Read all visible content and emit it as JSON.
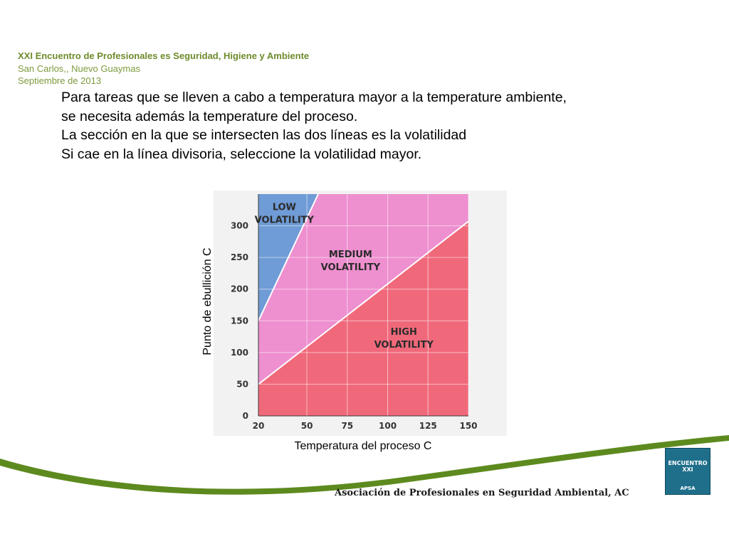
{
  "header": {
    "organization": "XXI Encuentro  de Profesionales es Seguridad, Higiene y Ambiente",
    "location": "San Carlos,, Nuevo Guaymas",
    "date": "Septiembre de 2013"
  },
  "body_lines": [
    "Para tareas que se lleven a cabo a temperatura mayor a la temperature ambiente,",
    "se necesita además la temperature del proceso.",
    "La sección en la que se intersecten las dos líneas es la volatilidad",
    "Si cae en la línea divisoria, seleccione la volatilidad mayor."
  ],
  "chart_data": {
    "type": "area",
    "xlabel": "Temperatura del proceso C",
    "ylabel": "Punto de ebullición C",
    "x_ticks": [
      20,
      50,
      75,
      100,
      125,
      150
    ],
    "y_ticks": [
      0,
      50,
      100,
      150,
      200,
      250,
      300
    ],
    "xlim": [
      20,
      150
    ],
    "ylim": [
      0,
      350
    ],
    "boundaries": [
      {
        "between": [
          "LOW VOLATILITY",
          "MEDIUM VOLATILITY"
        ],
        "points": [
          [
            20,
            150
          ],
          [
            57,
            350
          ]
        ]
      },
      {
        "between": [
          "MEDIUM VOLATILITY",
          "HIGH VOLATILITY"
        ],
        "points": [
          [
            20,
            50
          ],
          [
            150,
            307
          ]
        ]
      }
    ],
    "regions": [
      {
        "label_lines": [
          "LOW",
          "VOLATILITY"
        ],
        "color": "#6f9bd6",
        "label_at": [
          36,
          325
        ]
      },
      {
        "label_lines": [
          "MEDIUM",
          "VOLATILITY"
        ],
        "color": "#ee8fcf",
        "label_at": [
          77,
          250
        ]
      },
      {
        "label_lines": [
          "HIGH",
          "VOLATILITY"
        ],
        "color": "#f0697a",
        "label_at": [
          110,
          128
        ]
      }
    ]
  },
  "footer": {
    "text": "Asociación de Profesionales en Seguridad Ambiental, AC"
  },
  "logo": {
    "top_text": "ENCUENTRO XXI",
    "bottom_text": "APSA"
  },
  "colors": {
    "accent_green": "#5d8a1e",
    "header_green": "#6e8b2c"
  }
}
